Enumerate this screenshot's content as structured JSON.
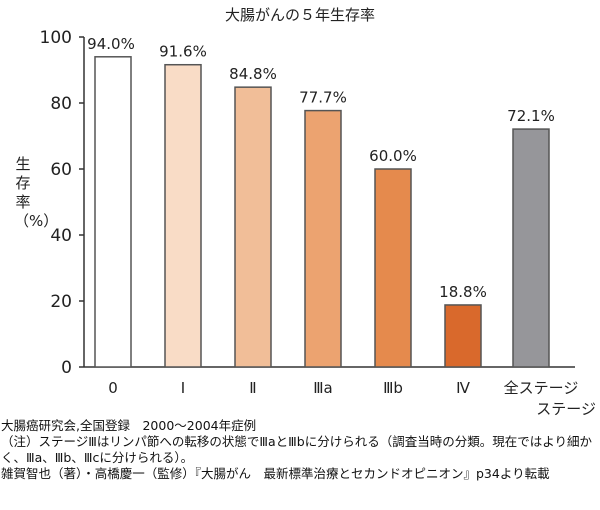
{
  "chart_data": {
    "type": "bar",
    "title": "大腸がんの５年生存率",
    "ylabel": "生存率（%）",
    "xlabel": "",
    "ylim": [
      0,
      100
    ],
    "yticks": [
      0,
      20,
      40,
      60,
      80,
      100
    ],
    "categories": [
      "0",
      "Ⅰ",
      "Ⅱ",
      "Ⅲa",
      "Ⅲb",
      "Ⅳ",
      "全ステージ"
    ],
    "category_label_second_line": "ステージ",
    "values": [
      94.0,
      91.6,
      84.8,
      77.7,
      60.0,
      18.8,
      72.1
    ],
    "data_labels": [
      "94.0%",
      "91.6%",
      "84.8%",
      "77.7%",
      "60.0%",
      "18.8%",
      "72.1%"
    ],
    "colors": [
      "#ffffff",
      "#f9dcc6",
      "#f1be98",
      "#eca370",
      "#e58a4d",
      "#d9692c",
      "#96969a"
    ],
    "grid": false
  },
  "notes": [
    "大腸癌研究会,全国登録　2000〜2004年症例",
    "（注）ステージⅢはリンパ節への転移の状態でⅢaとⅢbに分けられる（調査当時の分類。現在ではより細かく、Ⅲa、Ⅲb、Ⅲcに分けられる）。",
    "雑賀智也（著）・高橋慶一（監修）『大腸がん　最新標準治療とセカンドオピニオン』p34より転載"
  ]
}
